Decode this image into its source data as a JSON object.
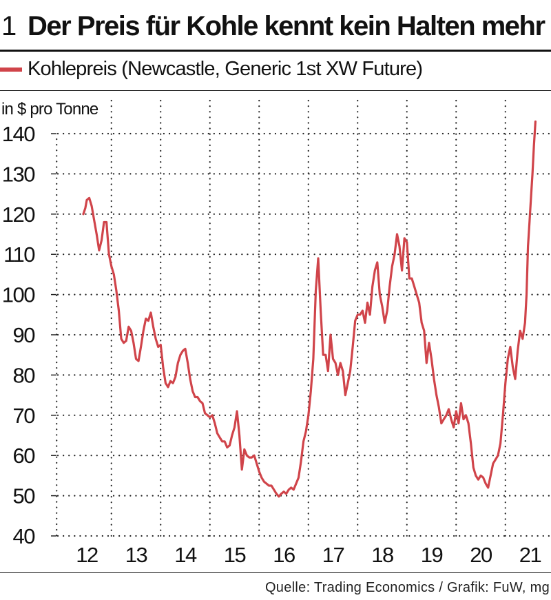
{
  "header": {
    "figure_number": "1",
    "title": "Der Preis für Kohle kennt kein Halten mehr"
  },
  "legend": {
    "label": "Kohlepreis (Newcastle, Generic 1st XW Future)",
    "color": "#d0444a"
  },
  "footer": {
    "source": "Quelle: Trading Economics / Grafik: FuW, mg"
  },
  "chart_data": {
    "type": "line",
    "title": "Der Preis für Kohle kennt kein Halten mehr",
    "ylabel": "in $ pro Tonne",
    "xlabel": "",
    "ylim": [
      40,
      140
    ],
    "y_ticks": [
      "140",
      "130",
      "120",
      "110",
      "100",
      "90",
      "80",
      "70",
      "60",
      "50",
      "40"
    ],
    "x_ticks": [
      "12",
      "13",
      "14",
      "15",
      "16",
      "17",
      "18",
      "19",
      "20",
      "21"
    ],
    "grid": true,
    "legend_position": "top-left",
    "series": [
      {
        "name": "Kohlepreis (Newcastle, Generic 1st XW Future)",
        "color": "#d0444a",
        "points": [
          [
            11.93,
            120.0
          ],
          [
            11.97,
            121.5
          ],
          [
            12.0,
            123.5
          ],
          [
            12.05,
            124.0
          ],
          [
            12.1,
            122.0
          ],
          [
            12.15,
            118.5
          ],
          [
            12.2,
            115.0
          ],
          [
            12.25,
            111.0
          ],
          [
            12.3,
            113.5
          ],
          [
            12.35,
            118.0
          ],
          [
            12.4,
            118.0
          ],
          [
            12.45,
            110.0
          ],
          [
            12.5,
            107.0
          ],
          [
            12.55,
            105.0
          ],
          [
            12.6,
            101.0
          ],
          [
            12.65,
            96.0
          ],
          [
            12.7,
            89.0
          ],
          [
            12.75,
            88.0
          ],
          [
            12.8,
            88.5
          ],
          [
            12.85,
            92.0
          ],
          [
            12.9,
            91.0
          ],
          [
            12.95,
            88.0
          ],
          [
            13.0,
            84.0
          ],
          [
            13.05,
            83.5
          ],
          [
            13.1,
            87.0
          ],
          [
            13.15,
            91.0
          ],
          [
            13.2,
            94.0
          ],
          [
            13.25,
            93.5
          ],
          [
            13.3,
            95.5
          ],
          [
            13.35,
            92.0
          ],
          [
            13.4,
            89.0
          ],
          [
            13.45,
            87.0
          ],
          [
            13.5,
            87.5
          ],
          [
            13.55,
            82.0
          ],
          [
            13.6,
            78.0
          ],
          [
            13.65,
            77.0
          ],
          [
            13.7,
            78.5
          ],
          [
            13.75,
            78.0
          ],
          [
            13.8,
            79.5
          ],
          [
            13.85,
            83.0
          ],
          [
            13.9,
            85.0
          ],
          [
            13.95,
            86.0
          ],
          [
            14.0,
            86.5
          ],
          [
            14.05,
            83.0
          ],
          [
            14.1,
            79.0
          ],
          [
            14.15,
            76.0
          ],
          [
            14.2,
            74.5
          ],
          [
            14.25,
            74.5
          ],
          [
            14.3,
            73.5
          ],
          [
            14.35,
            73.0
          ],
          [
            14.4,
            70.5
          ],
          [
            14.45,
            70.0
          ],
          [
            14.5,
            69.5
          ],
          [
            14.55,
            70.0
          ],
          [
            14.6,
            68.0
          ],
          [
            14.65,
            65.5
          ],
          [
            14.7,
            64.5
          ],
          [
            14.75,
            63.5
          ],
          [
            14.8,
            63.5
          ],
          [
            14.85,
            62.0
          ],
          [
            14.9,
            62.5
          ],
          [
            14.95,
            65.0
          ],
          [
            15.0,
            67.0
          ],
          [
            15.05,
            71.0
          ],
          [
            15.1,
            65.0
          ],
          [
            15.15,
            56.5
          ],
          [
            15.2,
            61.5
          ],
          [
            15.25,
            60.0
          ],
          [
            15.3,
            59.5
          ],
          [
            15.35,
            59.5
          ],
          [
            15.4,
            60.0
          ],
          [
            15.45,
            58.0
          ],
          [
            15.5,
            56.0
          ],
          [
            15.55,
            54.5
          ],
          [
            15.6,
            53.5
          ],
          [
            15.65,
            53.0
          ],
          [
            15.7,
            52.5
          ],
          [
            15.75,
            52.5
          ],
          [
            15.8,
            51.5
          ],
          [
            15.85,
            50.5
          ],
          [
            15.9,
            49.8
          ],
          [
            15.95,
            50.5
          ],
          [
            16.0,
            51.0
          ],
          [
            16.05,
            50.5
          ],
          [
            16.1,
            51.5
          ],
          [
            16.15,
            52.0
          ],
          [
            16.2,
            51.5
          ],
          [
            16.25,
            53.0
          ],
          [
            16.3,
            54.5
          ],
          [
            16.35,
            58.5
          ],
          [
            16.4,
            63.5
          ],
          [
            16.45,
            66.0
          ],
          [
            16.5,
            70.0
          ],
          [
            16.55,
            76.0
          ],
          [
            16.6,
            84.0
          ],
          [
            16.65,
            101.0
          ],
          [
            16.7,
            109.0
          ],
          [
            16.75,
            96.0
          ],
          [
            16.8,
            85.0
          ],
          [
            16.85,
            85.0
          ],
          [
            16.9,
            81.0
          ],
          [
            16.95,
            90.0
          ],
          [
            17.0,
            84.0
          ],
          [
            17.05,
            83.0
          ],
          [
            17.1,
            80.0
          ],
          [
            17.15,
            83.0
          ],
          [
            17.2,
            81.0
          ],
          [
            17.25,
            75.0
          ],
          [
            17.3,
            78.0
          ],
          [
            17.35,
            81.0
          ],
          [
            17.4,
            87.0
          ],
          [
            17.45,
            93.5
          ],
          [
            17.5,
            95.0
          ],
          [
            17.55,
            95.0
          ],
          [
            17.6,
            96.0
          ],
          [
            17.65,
            93.0
          ],
          [
            17.7,
            98.0
          ],
          [
            17.75,
            95.0
          ],
          [
            17.8,
            102.0
          ],
          [
            17.85,
            106.0
          ],
          [
            17.9,
            108.0
          ],
          [
            17.95,
            100.0
          ],
          [
            18.0,
            97.0
          ],
          [
            18.05,
            93.0
          ],
          [
            18.1,
            96.0
          ],
          [
            18.15,
            102.0
          ],
          [
            18.2,
            107.0
          ],
          [
            18.25,
            110.0
          ],
          [
            18.3,
            115.0
          ],
          [
            18.35,
            112.0
          ],
          [
            18.4,
            106.0
          ],
          [
            18.45,
            114.0
          ],
          [
            18.5,
            113.0
          ],
          [
            18.55,
            104.0
          ],
          [
            18.6,
            104.0
          ],
          [
            18.65,
            102.0
          ],
          [
            18.7,
            100.0
          ],
          [
            18.75,
            98.0
          ],
          [
            18.8,
            93.0
          ],
          [
            18.85,
            91.0
          ],
          [
            18.9,
            83.0
          ],
          [
            18.95,
            88.0
          ],
          [
            19.0,
            84.0
          ],
          [
            19.05,
            79.0
          ],
          [
            19.1,
            75.0
          ],
          [
            19.15,
            72.0
          ],
          [
            19.2,
            68.0
          ],
          [
            19.25,
            69.0
          ],
          [
            19.3,
            70.0
          ],
          [
            19.35,
            71.5
          ],
          [
            19.4,
            69.0
          ],
          [
            19.45,
            67.0
          ],
          [
            19.5,
            71.0
          ],
          [
            19.55,
            68.0
          ],
          [
            19.6,
            73.0
          ],
          [
            19.65,
            69.0
          ],
          [
            19.7,
            70.0
          ],
          [
            19.75,
            68.0
          ],
          [
            19.8,
            63.0
          ],
          [
            19.85,
            57.0
          ],
          [
            19.9,
            55.0
          ],
          [
            19.95,
            54.0
          ],
          [
            20.0,
            55.0
          ],
          [
            20.05,
            54.5
          ],
          [
            20.1,
            53.0
          ],
          [
            20.15,
            52.0
          ],
          [
            20.2,
            55.0
          ],
          [
            20.25,
            58.0
          ],
          [
            20.3,
            59.0
          ],
          [
            20.35,
            60.0
          ],
          [
            20.4,
            63.0
          ],
          [
            20.45,
            70.0
          ],
          [
            20.5,
            78.0
          ],
          [
            20.55,
            84.0
          ],
          [
            20.6,
            87.0
          ],
          [
            20.65,
            82.0
          ],
          [
            20.7,
            79.0
          ],
          [
            20.75,
            86.0
          ],
          [
            20.8,
            91.0
          ],
          [
            20.85,
            89.0
          ],
          [
            20.9,
            93.0
          ],
          [
            20.93,
            100.0
          ],
          [
            20.96,
            112.0
          ],
          [
            20.99,
            118.0
          ],
          [
            21.02,
            124.0
          ],
          [
            21.05,
            130.0
          ],
          [
            21.08,
            137.0
          ],
          [
            21.11,
            143.0
          ]
        ]
      }
    ]
  }
}
